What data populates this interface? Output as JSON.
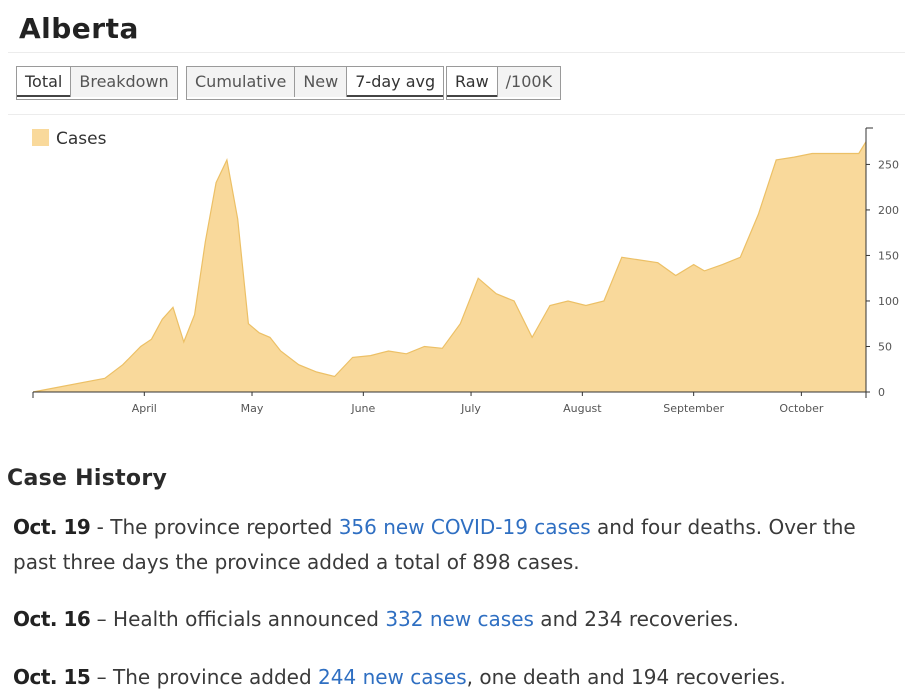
{
  "page": {
    "title": "Alberta"
  },
  "controls": {
    "groups": [
      {
        "buttons": [
          {
            "label": "Total",
            "active": true
          },
          {
            "label": "Breakdown",
            "active": false
          }
        ]
      },
      {
        "buttons": [
          {
            "label": "Cumulative",
            "active": false
          },
          {
            "label": "New",
            "active": false
          },
          {
            "label": "7-day avg",
            "active": true
          }
        ]
      },
      {
        "buttons": [
          {
            "label": "Raw",
            "active": true
          },
          {
            "label": "/100K",
            "active": false
          }
        ]
      }
    ]
  },
  "chart_data": {
    "type": "area",
    "legend": {
      "label": "Cases",
      "position": "top-left"
    },
    "colors": {
      "fill": "#f9d99b",
      "stroke": "#ecc066"
    },
    "xlabels": [
      "April",
      "May",
      "June",
      "July",
      "August",
      "September",
      "October"
    ],
    "x": [
      "2020-03-01",
      "2020-03-21",
      "2020-03-26",
      "2020-03-31",
      "2020-04-03",
      "2020-04-06",
      "2020-04-09",
      "2020-04-12",
      "2020-04-15",
      "2020-04-18",
      "2020-04-21",
      "2020-04-24",
      "2020-04-27",
      "2020-04-30",
      "2020-05-03",
      "2020-05-06",
      "2020-05-09",
      "2020-05-14",
      "2020-05-19",
      "2020-05-24",
      "2020-05-29",
      "2020-06-03",
      "2020-06-08",
      "2020-06-13",
      "2020-06-18",
      "2020-06-23",
      "2020-06-28",
      "2020-07-03",
      "2020-07-08",
      "2020-07-13",
      "2020-07-18",
      "2020-07-23",
      "2020-07-28",
      "2020-08-02",
      "2020-08-07",
      "2020-08-12",
      "2020-08-17",
      "2020-08-22",
      "2020-08-27",
      "2020-09-01",
      "2020-09-04",
      "2020-09-09",
      "2020-09-14",
      "2020-09-19",
      "2020-09-24",
      "2020-09-29",
      "2020-10-04",
      "2020-10-09",
      "2020-10-12",
      "2020-10-15",
      "2020-10-17",
      "2020-10-19"
    ],
    "values": [
      0,
      15,
      30,
      50,
      58,
      80,
      93,
      55,
      85,
      165,
      230,
      255,
      190,
      75,
      65,
      60,
      45,
      30,
      22,
      17,
      38,
      40,
      45,
      42,
      50,
      48,
      75,
      125,
      108,
      100,
      60,
      95,
      100,
      95,
      100,
      148,
      145,
      142,
      128,
      140,
      133,
      140,
      148,
      195,
      255,
      258,
      262,
      262,
      262,
      262,
      262,
      275
    ],
    "yticks": [
      0,
      50,
      100,
      150,
      200,
      250
    ],
    "ylim": [
      0,
      290
    ],
    "grid": false
  },
  "history": {
    "title": "Case History",
    "entries": [
      {
        "date": "Oct. 19",
        "sep": " - ",
        "pre": "The province reported ",
        "link": "356 new COVID-19 cases",
        "post": " and four deaths. Over the past three days the province added a total of 898 cases."
      },
      {
        "date": "Oct. 16",
        "sep": " – ",
        "pre": "Health officials announced ",
        "link": "332 new cases",
        "post": " and 234 recoveries."
      },
      {
        "date": "Oct. 15",
        "sep": " – ",
        "pre": "The province added ",
        "link": "244 new cases",
        "post": ", one death and 194 recoveries."
      }
    ]
  }
}
